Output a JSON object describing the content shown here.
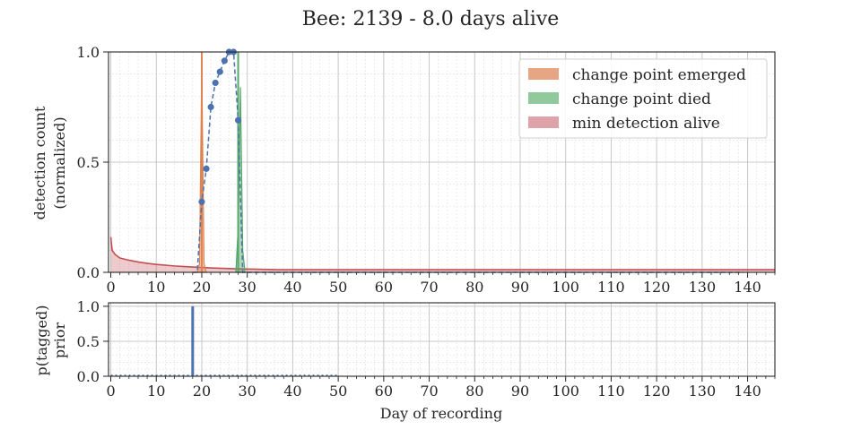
{
  "chart_data": [
    {
      "type": "line",
      "title": "Bee: 2139 - 8.0 days alive",
      "ylabel": [
        "detection count",
        "(normalized)"
      ],
      "xlim": [
        -0.5,
        146
      ],
      "ylim": [
        0,
        1
      ],
      "xticks": [
        0,
        10,
        20,
        30,
        40,
        50,
        60,
        70,
        80,
        90,
        100,
        110,
        120,
        130,
        140
      ],
      "yticks": [
        0.0,
        0.5,
        1.0
      ],
      "ytick_labels": [
        "0.0",
        "0.5",
        "1.0"
      ],
      "grid": true,
      "legend_position": "top-right",
      "legend": [
        {
          "label": "change point emerged",
          "color": "#e8a583"
        },
        {
          "label": "change point died",
          "color": "#90c99b"
        },
        {
          "label": "min detection alive",
          "color": "#dea3a8"
        }
      ],
      "colors": {
        "detections": "#4c72b0",
        "emerged": "#dd8452",
        "died": "#55a868",
        "min_alive": "#c44e52"
      },
      "series": [
        {
          "x": [
            18,
            19,
            20,
            21,
            22,
            23,
            24,
            25,
            26,
            27,
            28,
            29,
            30,
            31,
            32,
            33,
            34,
            35,
            36,
            37,
            38,
            39,
            40,
            45,
            50,
            60,
            70,
            80,
            90,
            100,
            110,
            120,
            130,
            139
          ],
          "y": [
            0.0,
            0.0,
            0.32,
            0.47,
            0.75,
            0.86,
            0.91,
            0.96,
            1.0,
            1.0,
            0.69,
            0.0,
            0.0,
            0.0,
            0.0,
            0.0,
            0.0,
            0.0,
            0.0,
            0.0,
            0.0,
            0.0,
            0.0,
            0.0,
            0.0,
            0.0,
            0.0,
            0.0,
            0.0,
            0.0,
            0.0,
            0.0,
            0.0,
            0.0
          ],
          "markers_x": [
            20,
            21,
            22,
            23,
            24,
            25,
            26,
            27,
            28
          ],
          "markers_y": [
            0.32,
            0.47,
            0.75,
            0.86,
            0.91,
            0.96,
            1.0,
            1.0,
            0.69
          ]
        }
      ],
      "min_detection_curve": {
        "x": [
          0,
          0.3,
          1,
          2,
          4,
          6,
          8,
          10,
          14,
          18,
          22,
          26,
          30,
          37,
          146
        ],
        "y": [
          0.16,
          0.1,
          0.08,
          0.065,
          0.055,
          0.047,
          0.041,
          0.036,
          0.029,
          0.024,
          0.02,
          0.017,
          0.015,
          0.012,
          0.012
        ]
      },
      "emerged_dist": {
        "x": [
          19,
          19.5,
          20,
          20.5,
          21
        ],
        "y": [
          0,
          0.04,
          0.93,
          0.04,
          0
        ]
      },
      "died_dist": {
        "x": [
          27.5,
          28,
          28.5,
          29,
          29.5
        ],
        "y": [
          0,
          0.2,
          0.84,
          0.1,
          0
        ]
      },
      "emerged_line_x": 20,
      "died_line_x": 28
    },
    {
      "type": "bar",
      "ylabel": [
        "p(tagged)",
        "prior"
      ],
      "xlabel": "Day of recording",
      "xlim": [
        -0.5,
        146
      ],
      "ylim": [
        0,
        1.05
      ],
      "xticks": [
        0,
        10,
        20,
        30,
        40,
        50,
        60,
        70,
        80,
        90,
        100,
        110,
        120,
        130,
        140
      ],
      "yticks": [
        0.0,
        0.5,
        1.0
      ],
      "ytick_labels": [
        "0.0",
        "0.5",
        "1.0"
      ],
      "grid": true,
      "color": "#4c72b0",
      "x": [
        0,
        5,
        10,
        15,
        18,
        20,
        25,
        30,
        35,
        40,
        45,
        50
      ],
      "values": [
        0,
        0,
        0,
        0,
        1.0,
        0,
        0,
        0,
        0,
        0,
        0,
        0
      ],
      "dotted_range": [
        0,
        50
      ]
    }
  ]
}
